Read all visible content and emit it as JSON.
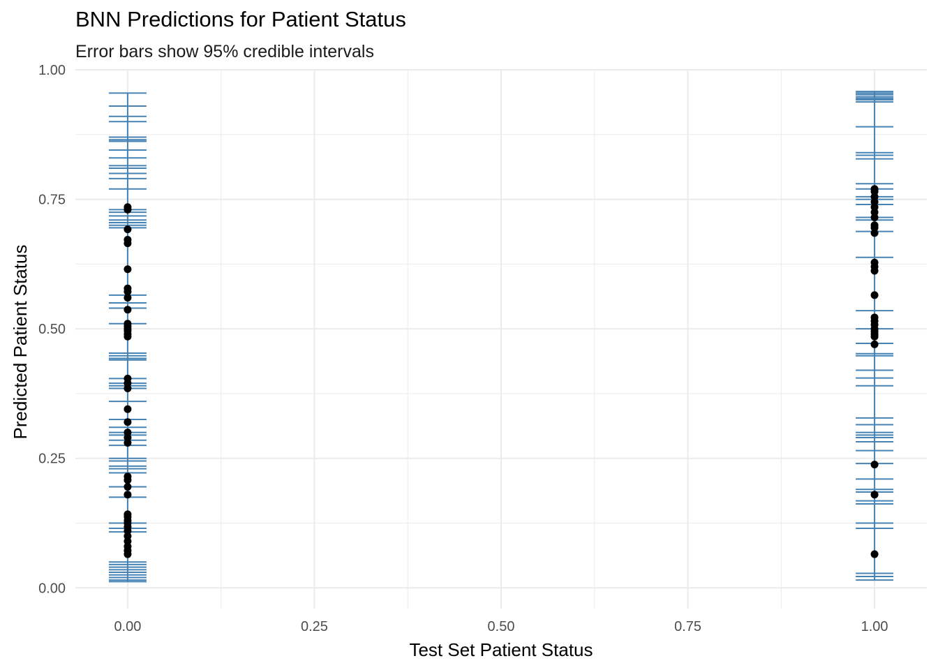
{
  "chart_data": {
    "type": "scatter",
    "title": "BNN Predictions for Patient Status",
    "subtitle": "Error bars show 95% credible intervals",
    "xlabel": "Test Set Patient Status",
    "ylabel": "Predicted Patient Status",
    "xlim": [
      -0.07,
      1.07
    ],
    "ylim": [
      -0.04,
      1.0
    ],
    "x_ticks": [
      0.0,
      0.25,
      0.5,
      0.75,
      1.0
    ],
    "x_tick_labels": [
      "0.00",
      "0.25",
      "0.50",
      "0.75",
      "1.00"
    ],
    "y_ticks": [
      0.0,
      0.25,
      0.5,
      0.75,
      1.0
    ],
    "y_tick_labels": [
      "0.00",
      "0.25",
      "0.50",
      "0.75",
      "1.00"
    ],
    "grid": true,
    "colors": {
      "errorbar": "#4682b4",
      "point": "#000000",
      "grid": "#ebebeb"
    },
    "series": [
      {
        "x": 0,
        "points": [
          0.735,
          0.73,
          0.692,
          0.672,
          0.665,
          0.615,
          0.578,
          0.572,
          0.56,
          0.537,
          0.51,
          0.505,
          0.5,
          0.496,
          0.49,
          0.485,
          0.404,
          0.395,
          0.385,
          0.345,
          0.32,
          0.3,
          0.29,
          0.28,
          0.215,
          0.208,
          0.195,
          0.18,
          0.142,
          0.137,
          0.13,
          0.125,
          0.118,
          0.11,
          0.1,
          0.09,
          0.08,
          0.072,
          0.065
        ],
        "caps": [
          0.955,
          0.93,
          0.91,
          0.9,
          0.87,
          0.865,
          0.862,
          0.845,
          0.83,
          0.815,
          0.81,
          0.8,
          0.79,
          0.77,
          0.73,
          0.725,
          0.718,
          0.71,
          0.705,
          0.7,
          0.695,
          0.565,
          0.55,
          0.54,
          0.51,
          0.453,
          0.448,
          0.443,
          0.44,
          0.404,
          0.395,
          0.39,
          0.385,
          0.36,
          0.325,
          0.31,
          0.3,
          0.295,
          0.285,
          0.275,
          0.25,
          0.245,
          0.235,
          0.23,
          0.222,
          0.195,
          0.175,
          0.125,
          0.115,
          0.108,
          0.05,
          0.045,
          0.04,
          0.035,
          0.03,
          0.025,
          0.02,
          0.015,
          0.012
        ]
      },
      {
        "x": 1,
        "points": [
          0.77,
          0.765,
          0.755,
          0.745,
          0.735,
          0.725,
          0.715,
          0.7,
          0.695,
          0.685,
          0.628,
          0.62,
          0.612,
          0.565,
          0.522,
          0.515,
          0.508,
          0.5,
          0.495,
          0.49,
          0.485,
          0.47,
          0.238,
          0.18,
          0.065
        ],
        "caps": [
          0.958,
          0.955,
          0.952,
          0.948,
          0.945,
          0.942,
          0.938,
          0.89,
          0.84,
          0.835,
          0.828,
          0.78,
          0.77,
          0.755,
          0.75,
          0.74,
          0.715,
          0.71,
          0.688,
          0.638,
          0.535,
          0.5,
          0.472,
          0.452,
          0.448,
          0.42,
          0.405,
          0.39,
          0.328,
          0.315,
          0.3,
          0.295,
          0.29,
          0.282,
          0.265,
          0.24,
          0.21,
          0.19,
          0.185,
          0.168,
          0.162,
          0.125,
          0.115,
          0.028,
          0.022,
          0.015
        ]
      }
    ]
  }
}
